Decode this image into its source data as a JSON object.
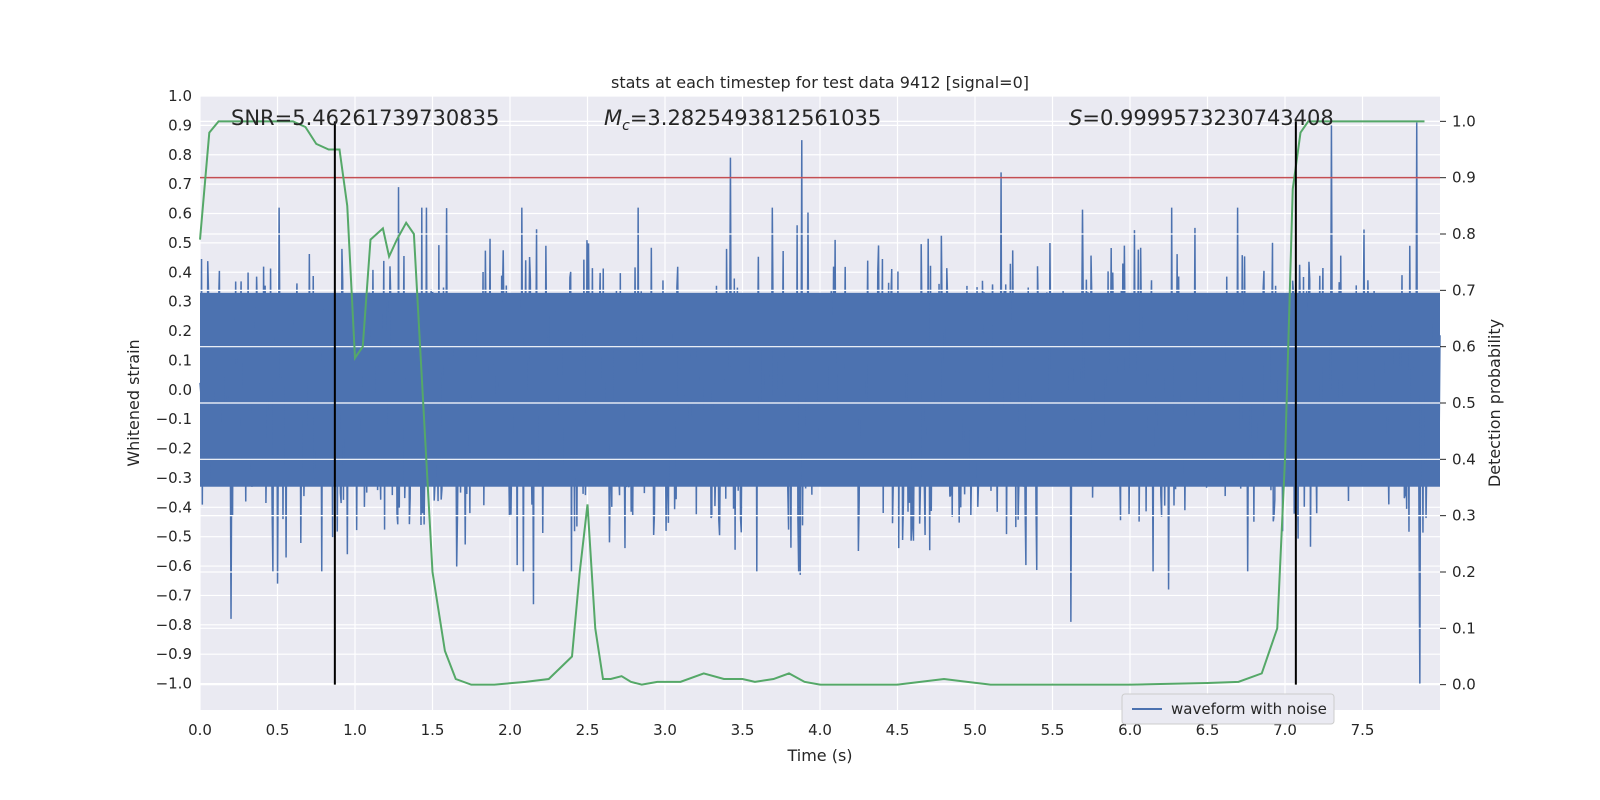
{
  "chart_data": {
    "type": "line",
    "title": "stats at each timestep for test data 9412 [signal=0]",
    "xlabel": "Time (s)",
    "ylabel_left": "Whitened strain",
    "ylabel_right": "Detection probability",
    "xlim": [
      0,
      8
    ],
    "ylim_left": [
      -1.09,
      1.0
    ],
    "ylim_right": [
      -0.045,
      1.045
    ],
    "x_ticks": [
      "0.0",
      "0.5",
      "1.0",
      "1.5",
      "2.0",
      "2.5",
      "3.0",
      "3.5",
      "4.0",
      "4.5",
      "5.0",
      "5.5",
      "6.0",
      "6.5",
      "7.0",
      "7.5"
    ],
    "y_left_ticks": [
      "1.0",
      "0.9",
      "0.8",
      "0.7",
      "0.6",
      "0.5",
      "0.4",
      "0.3",
      "0.2",
      "0.1",
      "0.0",
      "−0.1",
      "−0.2",
      "−0.3",
      "−0.4",
      "−0.5",
      "−0.6",
      "−0.7",
      "−0.8",
      "−0.9",
      "−1.0"
    ],
    "y_right_ticks": [
      "1.0",
      "0.9",
      "0.8",
      "0.7",
      "0.6",
      "0.5",
      "0.4",
      "0.3",
      "0.2",
      "0.1",
      "0.0"
    ],
    "grid": true,
    "legend_position": "lower-right",
    "annotations": {
      "snr": "SNR=5.46261739730835",
      "mc_symbol": "M",
      "mc_subscript": "c",
      "mc_value": "=3.2825493812561035",
      "s_symbol": "S",
      "s_value": "=0.9999573230743408"
    },
    "vertical_lines_time": [
      0.87,
      7.07
    ],
    "threshold_probability": 0.9,
    "series": [
      {
        "name": "waveform with noise",
        "color": "#4c72b0",
        "axis": "left",
        "duration_s": 8,
        "samples": 1600,
        "envelope_typical": 0.45,
        "peaks": [
          {
            "t": 0.2,
            "v": -0.78
          },
          {
            "t": 0.5,
            "v": -0.66
          },
          {
            "t": 0.95,
            "v": -0.56
          },
          {
            "t": 1.28,
            "v": 0.69
          },
          {
            "t": 2.15,
            "v": -0.73
          },
          {
            "t": 3.42,
            "v": 0.79
          },
          {
            "t": 3.88,
            "v": 0.85
          },
          {
            "t": 3.87,
            "v": -0.63
          },
          {
            "t": 5.17,
            "v": 0.74
          },
          {
            "t": 5.62,
            "v": -0.79
          },
          {
            "t": 6.25,
            "v": -0.68
          },
          {
            "t": 7.3,
            "v": 0.9
          },
          {
            "t": 7.85,
            "v": 0.91
          },
          {
            "t": 7.87,
            "v": -1.0
          }
        ]
      },
      {
        "name": "detection probability",
        "color": "#55a868",
        "axis": "right",
        "x": [
          0.0,
          0.06,
          0.12,
          0.2,
          0.3,
          0.4,
          0.5,
          0.6,
          0.68,
          0.75,
          0.83,
          0.9,
          0.95,
          1.0,
          1.05,
          1.1,
          1.18,
          1.22,
          1.27,
          1.33,
          1.38,
          1.43,
          1.5,
          1.58,
          1.65,
          1.75,
          1.9,
          2.1,
          2.25,
          2.4,
          2.45,
          2.5,
          2.55,
          2.6,
          2.65,
          2.72,
          2.78,
          2.85,
          2.95,
          3.1,
          3.25,
          3.38,
          3.5,
          3.58,
          3.7,
          3.8,
          3.9,
          4.0,
          4.2,
          4.5,
          4.8,
          4.95,
          5.1,
          5.5,
          6.0,
          6.5,
          6.7,
          6.85,
          6.95,
          7.0,
          7.05,
          7.1,
          7.15,
          7.2,
          7.3,
          7.5,
          7.9
        ],
        "y": [
          0.79,
          0.98,
          1.0,
          1.0,
          1.0,
          1.0,
          1.0,
          1.0,
          0.99,
          0.96,
          0.95,
          0.95,
          0.85,
          0.58,
          0.6,
          0.79,
          0.81,
          0.76,
          0.79,
          0.82,
          0.8,
          0.55,
          0.2,
          0.06,
          0.01,
          0.0,
          0.0,
          0.005,
          0.01,
          0.05,
          0.2,
          0.32,
          0.1,
          0.01,
          0.01,
          0.015,
          0.005,
          0.0,
          0.005,
          0.005,
          0.02,
          0.01,
          0.01,
          0.005,
          0.01,
          0.02,
          0.005,
          0.0,
          0.0,
          0.0,
          0.01,
          0.005,
          0.0,
          0.0,
          0.0,
          0.003,
          0.005,
          0.02,
          0.1,
          0.4,
          0.88,
          0.98,
          1.0,
          1.0,
          1.0,
          1.0,
          1.0
        ]
      }
    ]
  }
}
